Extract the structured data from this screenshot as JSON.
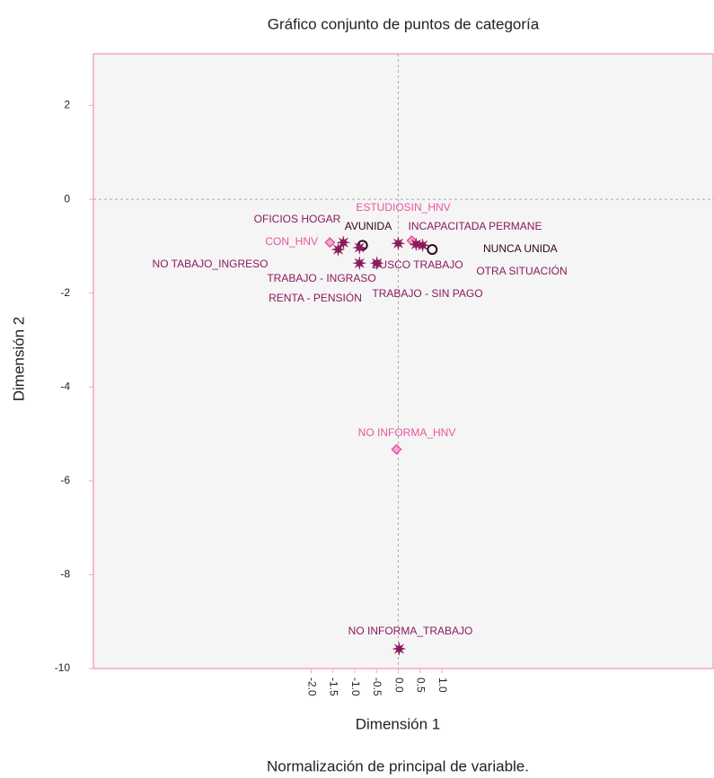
{
  "chart_data": {
    "type": "scatter",
    "title": "Gráfico conjunto de puntos de categoría",
    "xlabel": "Dimensión 1",
    "ylabel": "Dimensión 2",
    "caption": "Normalización de principal de variable.",
    "xlim": [
      -7,
      7.25
    ],
    "ylim": [
      -10,
      3.1
    ],
    "xticks": [
      {
        "value": -2,
        "label": "-2.0"
      },
      -1.5,
      {
        "value": -1,
        "label": "-1.0"
      },
      -0.5,
      {
        "value": 0,
        "label": "0.0"
      },
      0.5,
      {
        "value": 1,
        "label": "1.0"
      }
    ],
    "yticks": [
      -10,
      -8,
      -6,
      -4,
      -2,
      0,
      2
    ],
    "series": [
      {
        "color": "#e8559e",
        "marker": "diamond",
        "labels": [
          "CON_HNV",
          "ESTUDIOSIN_HNV",
          "NO INFORMA_HNV"
        ],
        "x": [
          -1.57,
          0.31,
          -0.04
        ],
        "y": [
          -0.92,
          -0.88,
          -5.33
        ]
      },
      {
        "color": "#2b0a1e",
        "marker": "circle",
        "labels": [
          "AVUNIDA",
          "NUNCA UNIDA"
        ],
        "x": [
          -0.82,
          0.78
        ],
        "y": [
          -0.98,
          -1.07
        ]
      },
      {
        "color": "#8b1a5c",
        "marker": "star",
        "labels": [
          "OFICIOS HOGAR",
          "NO TABAJO_INGRESO",
          "TRABAJO - INGRASO",
          "RENTA - PENSIÓN",
          "BUSCO TRABAJO",
          "TRABAJO - SIN PAGO",
          "INCAPACITADA PERMANE",
          "OTRA SITUACIÓN",
          "NO INFORMA_TRABAJO"
        ],
        "x": [
          -1.26,
          -1.38,
          -0.89,
          -0.89,
          -0.49,
          0.0,
          0.41,
          0.56,
          0.02
        ],
        "y": [
          -0.92,
          -1.07,
          -1.36,
          -1.03,
          -1.36,
          -0.94,
          -0.96,
          -0.98,
          -9.58
        ]
      }
    ]
  }
}
